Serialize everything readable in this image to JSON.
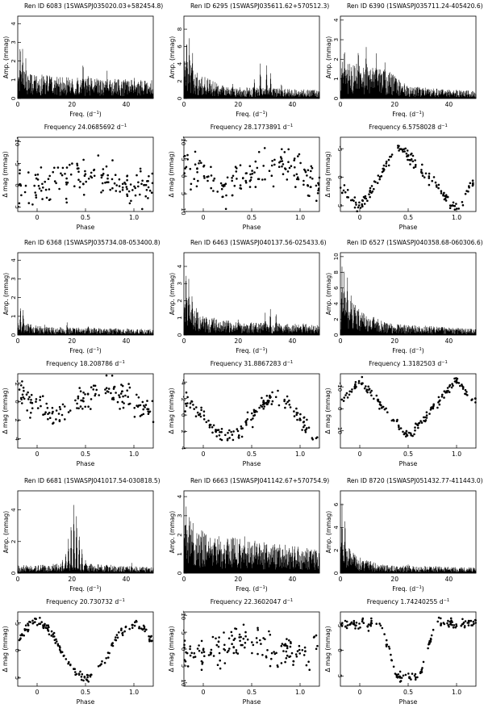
{
  "figure": {
    "amp_ylabel": "Amp. (mmag)",
    "freq_xlabel": "Freq. (d",
    "phase_xlabel": "Phase",
    "dmag_ylabel": "Δ mag (mmag)",
    "freq_prefix": "Frequency",
    "freq_unit": "d",
    "inv_exp": "−1"
  },
  "chart_data": [
    {
      "star": "Ren ID 6083",
      "swasp": "(1SWASPJ035020.03+582454.8)",
      "frequency": "24.0685692",
      "periodogram": {
        "type": "line",
        "xlim": [
          0,
          50
        ],
        "xticks": [
          "0",
          "20",
          "40"
        ],
        "ylim": [
          0,
          4.4
        ],
        "yticks": [
          "0",
          "1",
          "2",
          "3",
          "4"
        ],
        "peaks": [
          [
            0.9,
            3.3
          ],
          [
            1.8,
            3.0
          ],
          [
            3,
            2.4
          ],
          [
            24.1,
            2.1
          ],
          [
            33,
            1.65
          ],
          [
            26,
            1.45
          ],
          [
            14,
            1.3
          ],
          [
            43,
            1.3
          ]
        ],
        "noise": [
          [
            0,
            1.25
          ],
          [
            10,
            1.0
          ],
          [
            30,
            0.85
          ],
          [
            50,
            0.8
          ]
        ]
      },
      "phased": {
        "type": "scatter",
        "xlim": [
          -0.2,
          1.2
        ],
        "xticks": [
          "0",
          "0.5",
          "1.0"
        ],
        "ylim": [
          6,
          -11
        ],
        "yticks": [
          "-10",
          "-5",
          "0",
          "5"
        ],
        "amp": 1.5,
        "mean": -1,
        "scatter": 4.5,
        "shape": "sin",
        "phase0": 0.2,
        "seed": 11
      }
    },
    {
      "star": "Ren ID 6295",
      "swasp": "(1SWASPJ035611.62+570512.3)",
      "frequency": "28.1773891",
      "periodogram": {
        "type": "line",
        "xlim": [
          0,
          50
        ],
        "xticks": [
          "0",
          "20",
          "40"
        ],
        "ylim": [
          0,
          9.5
        ],
        "yticks": [
          "0",
          "2",
          "4",
          "6",
          "8"
        ],
        "peaks": [
          [
            1,
            8.3
          ],
          [
            2,
            7.5
          ],
          [
            3.2,
            6.0
          ],
          [
            28.2,
            4.4
          ],
          [
            30.5,
            4.1
          ],
          [
            32,
            3.3
          ],
          [
            26,
            2.6
          ],
          [
            18,
            2.0
          ],
          [
            36,
            1.9
          ]
        ],
        "noise": [
          [
            0,
            3.8
          ],
          [
            6,
            2.2
          ],
          [
            15,
            1.1
          ],
          [
            50,
            0.8
          ]
        ]
      },
      "phased": {
        "type": "scatter",
        "xlim": [
          -0.2,
          1.2
        ],
        "xticks": [
          "0",
          "0.5",
          "1.0"
        ],
        "ylim": [
          10,
          -11
        ],
        "yticks": [
          "-10",
          "-5",
          "0",
          "5",
          "10"
        ],
        "amp": 3,
        "mean": 0,
        "scatter": 5.0,
        "shape": "sin",
        "phase0": 0.0,
        "seed": 23
      }
    },
    {
      "star": "Ren ID 6390",
      "swasp": "(1SWASPJ035711.24-405420.6)",
      "frequency": "6.5758028",
      "periodogram": {
        "type": "line",
        "xlim": [
          0,
          50
        ],
        "xticks": [
          "0",
          "20",
          "40"
        ],
        "ylim": [
          0,
          4.2
        ],
        "yticks": [
          "0",
          "1",
          "2",
          "3",
          "4"
        ],
        "peaks": [
          [
            6.6,
            3.2
          ],
          [
            9.5,
            3.05
          ],
          [
            13.2,
            2.5
          ],
          [
            16.4,
            2.3
          ],
          [
            3.3,
            2.2
          ],
          [
            1.5,
            3.2
          ],
          [
            20,
            1.2
          ]
        ],
        "noise": [
          [
            0,
            1.6
          ],
          [
            18,
            1.1
          ],
          [
            25,
            0.5
          ],
          [
            50,
            0.3
          ]
        ]
      },
      "phased": {
        "type": "scatter",
        "xlim": [
          -0.2,
          1.2
        ],
        "xticks": [
          "0",
          "0.5",
          "1.0"
        ],
        "ylim": [
          6,
          -7
        ],
        "yticks": [
          "-5",
          "0",
          "5"
        ],
        "amp": 5.5,
        "mean": 0,
        "scatter": 1.0,
        "shape": "saw",
        "phase0": 0.6,
        "seed": 37
      }
    },
    {
      "star": "Ren ID 6368",
      "swasp": "(1SWASPJ035734.08-053400.8)",
      "frequency": "18.208786",
      "periodogram": {
        "type": "line",
        "xlim": [
          0,
          50
        ],
        "xticks": [
          "0",
          "20",
          "40"
        ],
        "ylim": [
          0,
          4.4
        ],
        "yticks": [
          "0",
          "1",
          "2",
          "3",
          "4"
        ],
        "peaks": [
          [
            1,
            1.75
          ],
          [
            2,
            1.5
          ],
          [
            18.2,
            0.75
          ],
          [
            26,
            0.55
          ],
          [
            10,
            0.6
          ]
        ],
        "noise": [
          [
            0,
            0.6
          ],
          [
            10,
            0.35
          ],
          [
            50,
            0.25
          ]
        ]
      },
      "phased": {
        "type": "scatter",
        "xlim": [
          -0.2,
          1.2
        ],
        "xticks": [
          "0",
          "0.5",
          "1.0"
        ],
        "ylim": [
          5,
          -3
        ],
        "yticks": [
          "-2",
          "0",
          "2",
          "4"
        ],
        "amp": 1.2,
        "mean": 0,
        "scatter": 1.4,
        "shape": "sin",
        "phase0": 0.05,
        "seed": 41
      }
    },
    {
      "star": "Ren ID 6463",
      "swasp": "(1SWASPJ040137.56-025433.6)",
      "frequency": "31.8867283",
      "periodogram": {
        "type": "line",
        "xlim": [
          0,
          50
        ],
        "xticks": [
          "0",
          "20",
          "40"
        ],
        "ylim": [
          0,
          4.8
        ],
        "yticks": [
          "0",
          "1",
          "2",
          "3",
          "4"
        ],
        "peaks": [
          [
            0.8,
            4.2
          ],
          [
            1.8,
            3.6
          ],
          [
            3,
            2.8
          ],
          [
            31.9,
            1.7
          ],
          [
            34,
            1.5
          ],
          [
            30,
            1.3
          ],
          [
            20,
            1.0
          ],
          [
            44,
            0.9
          ]
        ],
        "noise": [
          [
            0,
            1.9
          ],
          [
            8,
            0.9
          ],
          [
            20,
            0.6
          ],
          [
            50,
            0.5
          ]
        ]
      },
      "phased": {
        "type": "scatter",
        "xlim": [
          -0.2,
          1.2
        ],
        "xticks": [
          "0",
          "0.5",
          "1.0"
        ],
        "ylim": [
          4,
          -5
        ],
        "yticks": [
          "-4",
          "-2",
          "0",
          "2",
          "4"
        ],
        "amp": 2.5,
        "mean": 0.3,
        "scatter": 1.1,
        "shape": "sin",
        "phase0": 0.0,
        "seed": 53
      }
    },
    {
      "star": "Ren ID 6527",
      "swasp": "(1SWASPJ040358.68-060306.6)",
      "frequency": "1.3182503",
      "periodogram": {
        "type": "line",
        "xlim": [
          0,
          50
        ],
        "xticks": [
          "0",
          "20",
          "40"
        ],
        "ylim": [
          0,
          10.5
        ],
        "yticks": [
          "0",
          "2",
          "4",
          "6",
          "8",
          "10"
        ],
        "peaks": [
          [
            0.6,
            9.8
          ],
          [
            1.3,
            8.8
          ],
          [
            2.6,
            8.0
          ],
          [
            3.9,
            6.0
          ],
          [
            5.2,
            4.5
          ],
          [
            8,
            3.3
          ],
          [
            12,
            2.2
          ]
        ],
        "noise": [
          [
            0,
            4.5
          ],
          [
            8,
            2.4
          ],
          [
            18,
            1.2
          ],
          [
            50,
            0.6
          ]
        ]
      },
      "phased": {
        "type": "scatter",
        "xlim": [
          -0.2,
          1.2
        ],
        "xticks": [
          "0",
          "0.5",
          "1.0"
        ],
        "ylim": [
          18,
          -16
        ],
        "yticks": [
          "-10",
          "0",
          "10"
        ],
        "amp": 13,
        "mean": 0,
        "scatter": 2.0,
        "shape": "vee",
        "phase0": 0.0,
        "seed": 67
      }
    },
    {
      "star": "Ren ID 6681",
      "swasp": "(1SWASPJ041017.54-030818.5)",
      "frequency": "20.730732",
      "periodogram": {
        "type": "line",
        "xlim": [
          0,
          50
        ],
        "xticks": [
          "0",
          "20",
          "40"
        ],
        "ylim": [
          0,
          5.2
        ],
        "yticks": [
          "0",
          "2",
          "4"
        ],
        "peaks": [
          [
            20.7,
            4.6
          ],
          [
            21.7,
            4.4
          ],
          [
            19.7,
            3.6
          ],
          [
            22.7,
            3.0
          ],
          [
            18.7,
            2.5
          ],
          [
            17.7,
            1.5
          ],
          [
            23.7,
            1.8
          ],
          [
            16.5,
            1.0
          ],
          [
            25,
            0.9
          ],
          [
            42,
            0.7
          ]
        ],
        "noise": [
          [
            0,
            0.4
          ],
          [
            18,
            0.5
          ],
          [
            24,
            0.5
          ],
          [
            50,
            0.3
          ]
        ]
      },
      "phased": {
        "type": "scatter",
        "xlim": [
          -0.2,
          1.2
        ],
        "xticks": [
          "0",
          "0.5",
          "1.0"
        ],
        "ylim": [
          6.5,
          -7
        ],
        "yticks": [
          "-5",
          "0",
          "5"
        ],
        "amp": 5,
        "mean": 0,
        "scatter": 0.8,
        "shape": "smooth",
        "phase0": 0.0,
        "seed": 71
      }
    },
    {
      "star": "Ren ID 6663",
      "swasp": "(1SWASPJ041142.67+570754.9)",
      "frequency": "22.3602047",
      "periodogram": {
        "type": "line",
        "xlim": [
          0,
          50
        ],
        "xticks": [
          "0",
          "20",
          "40"
        ],
        "ylim": [
          0,
          4.3
        ],
        "yticks": [
          "0",
          "1",
          "2",
          "3",
          "4"
        ],
        "peaks": [
          [
            0.8,
            3.9
          ],
          [
            2,
            3.5
          ],
          [
            3.3,
            3.0
          ],
          [
            22.4,
            2.2
          ],
          [
            18,
            2.0
          ],
          [
            27,
            1.9
          ],
          [
            33,
            1.7
          ],
          [
            40,
            1.5
          ],
          [
            13,
            1.8
          ]
        ],
        "noise": [
          [
            0,
            2.4
          ],
          [
            10,
            1.6
          ],
          [
            30,
            1.3
          ],
          [
            50,
            1.0
          ]
        ]
      },
      "phased": {
        "type": "scatter",
        "xlim": [
          -0.2,
          1.2
        ],
        "xticks": [
          "0",
          "0.5",
          "1.0"
        ],
        "ylim": [
          11,
          -11
        ],
        "yticks": [
          "-10",
          "-5",
          "0",
          "5",
          "10"
        ],
        "amp": 1.8,
        "mean": 0,
        "scatter": 5.2,
        "shape": "sin",
        "phase0": 0.3,
        "seed": 83
      }
    },
    {
      "star": "Ren ID 8720",
      "swasp": "(1SWASPJ051432.77-411443.0)",
      "frequency": "1.74240255",
      "periodogram": {
        "type": "line",
        "xlim": [
          0,
          50
        ],
        "xticks": [
          "0",
          "20",
          "40"
        ],
        "ylim": [
          0,
          7.2
        ],
        "yticks": [
          "0",
          "2",
          "4",
          "6"
        ],
        "peaks": [
          [
            0.6,
            6.6
          ],
          [
            1.7,
            5.2
          ],
          [
            3.5,
            2.5
          ],
          [
            5.2,
            1.8
          ],
          [
            9,
            1.0
          ],
          [
            25,
            0.8
          ]
        ],
        "noise": [
          [
            0,
            2.4
          ],
          [
            6,
            1.2
          ],
          [
            15,
            0.6
          ],
          [
            50,
            0.4
          ]
        ]
      },
      "phased": {
        "type": "scatter",
        "xlim": [
          -0.2,
          1.2
        ],
        "xticks": [
          "0",
          "0.5",
          "1.0"
        ],
        "ylim": [
          7,
          -7.5
        ],
        "yticks": [
          "-5",
          "0",
          "5"
        ],
        "amp": 5.2,
        "mean": 0,
        "scatter": 0.9,
        "shape": "box",
        "phase0": 0.0,
        "seed": 97
      }
    }
  ]
}
